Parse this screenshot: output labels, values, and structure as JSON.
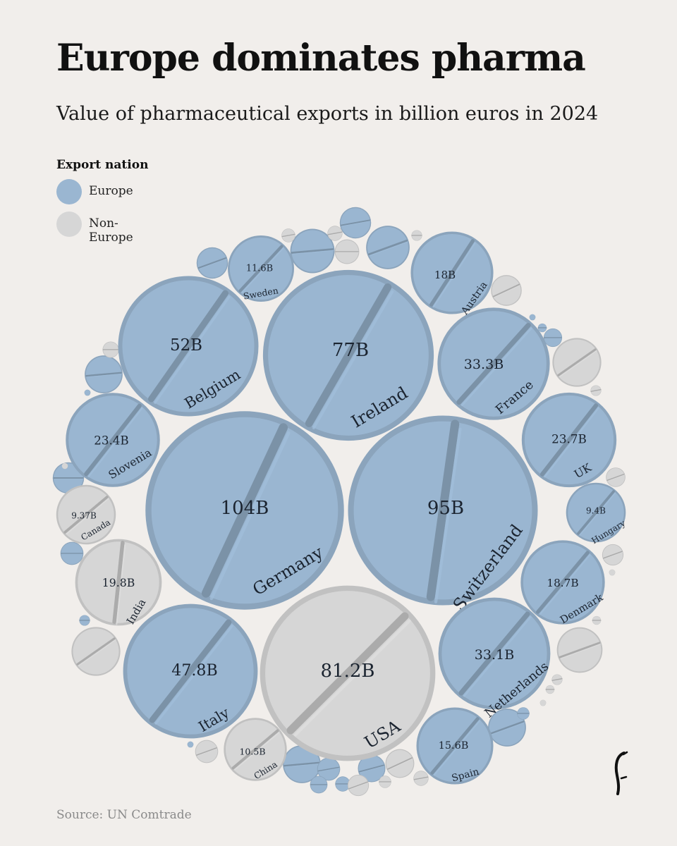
{
  "title": "Europe dominates pharma",
  "subtitle": "Value of pharmaceutical exports in billion euros in 2024",
  "legend": {
    "title": "Export nation",
    "items": [
      {
        "label": "Europe",
        "color": "#9ab6d1"
      },
      {
        "label": "Non-Europe",
        "color": "#d6d6d6"
      }
    ]
  },
  "source": "Source: UN Comtrade",
  "colors": {
    "europe": "#9ab6d1",
    "non_europe": "#d6d6d6",
    "background": "#f1eeeb"
  },
  "chart_data": {
    "type": "packed-bubble",
    "unit": "billion euros",
    "year": 2024,
    "series": [
      {
        "country": "Germany",
        "value": 104,
        "label": "104B",
        "group": "Europe"
      },
      {
        "country": "Switzerland",
        "value": 95,
        "label": "95B",
        "group": "Europe"
      },
      {
        "country": "USA",
        "value": 81.2,
        "label": "81.2B",
        "group": "Non-Europe"
      },
      {
        "country": "Ireland",
        "value": 77,
        "label": "77B",
        "group": "Europe"
      },
      {
        "country": "Belgium",
        "value": 52,
        "label": "52B",
        "group": "Europe"
      },
      {
        "country": "Italy",
        "value": 47.8,
        "label": "47.8B",
        "group": "Europe"
      },
      {
        "country": "France",
        "value": 33.3,
        "label": "33.3B",
        "group": "Europe"
      },
      {
        "country": "Netherlands",
        "value": 33.1,
        "label": "33.1B",
        "group": "Europe"
      },
      {
        "country": "UK",
        "value": 23.7,
        "label": "23.7B",
        "group": "Europe"
      },
      {
        "country": "Slovenia",
        "value": 23.4,
        "label": "23.4B",
        "group": "Europe"
      },
      {
        "country": "India",
        "value": 19.8,
        "label": "19.8B",
        "group": "Non-Europe"
      },
      {
        "country": "Denmark",
        "value": 18.7,
        "label": "18.7B",
        "group": "Europe"
      },
      {
        "country": "Austria",
        "value": 18,
        "label": "18B",
        "group": "Europe"
      },
      {
        "country": "Spain",
        "value": 15.6,
        "label": "15.6B",
        "group": "Europe"
      },
      {
        "country": "Sweden",
        "value": 11.6,
        "label": "11.6B",
        "group": "Europe"
      },
      {
        "country": "China",
        "value": 10.5,
        "label": "10.5B",
        "group": "Non-Europe"
      },
      {
        "country": "Hungary",
        "value": 9.4,
        "label": "9.4B",
        "group": "Europe"
      },
      {
        "country": "Canada",
        "value": 9.37,
        "label": "9.37B",
        "group": "Non-Europe"
      }
    ],
    "unlabeled": [
      {
        "group": "Europe",
        "value": 2.6
      },
      {
        "group": "Europe",
        "value": 2.6
      },
      {
        "group": "Europe",
        "value": 5.2
      },
      {
        "group": "Europe",
        "value": 5.0
      },
      {
        "group": "Europe",
        "value": 3.8
      },
      {
        "group": "Europe",
        "value": 3.8
      },
      {
        "group": "Europe",
        "value": 3.8
      },
      {
        "group": "Europe",
        "value": 2.6
      },
      {
        "group": "Europe",
        "value": 2.0
      },
      {
        "group": "Europe",
        "value": 1.4
      },
      {
        "group": "Europe",
        "value": 1.4
      },
      {
        "group": "Europe",
        "value": 0.9
      },
      {
        "group": "Europe",
        "value": 0.8
      },
      {
        "group": "Europe",
        "value": 0.6
      },
      {
        "group": "Europe",
        "value": 0.4
      },
      {
        "group": "Europe",
        "value": 0.3
      },
      {
        "group": "Europe",
        "value": 0.2
      },
      {
        "group": "Europe",
        "value": 0.1
      },
      {
        "group": "Europe",
        "value": 0.1
      },
      {
        "group": "Europe",
        "value": 0.1
      },
      {
        "group": "Non-Europe",
        "value": 6.3
      },
      {
        "group": "Non-Europe",
        "value": 6.3
      },
      {
        "group": "Non-Europe",
        "value": 5.5
      },
      {
        "group": "Non-Europe",
        "value": 2.5
      },
      {
        "group": "Non-Europe",
        "value": 2.2
      },
      {
        "group": "Non-Europe",
        "value": 1.6
      },
      {
        "group": "Non-Europe",
        "value": 1.4
      },
      {
        "group": "Non-Europe",
        "value": 1.2
      },
      {
        "group": "Non-Europe",
        "value": 1.2
      },
      {
        "group": "Non-Europe",
        "value": 1.0
      },
      {
        "group": "Non-Europe",
        "value": 0.7
      },
      {
        "group": "Non-Europe",
        "value": 0.6
      },
      {
        "group": "Non-Europe",
        "value": 0.6
      },
      {
        "group": "Non-Europe",
        "value": 0.5
      },
      {
        "group": "Non-Europe",
        "value": 0.4
      },
      {
        "group": "Non-Europe",
        "value": 0.3
      },
      {
        "group": "Non-Europe",
        "value": 0.3
      },
      {
        "group": "Non-Europe",
        "value": 0.3
      },
      {
        "group": "Non-Europe",
        "value": 0.2
      },
      {
        "group": "Non-Europe",
        "value": 0.2
      },
      {
        "group": "Non-Europe",
        "value": 0.1
      },
      {
        "group": "Non-Europe",
        "value": 0.1
      },
      {
        "group": "Non-Europe",
        "value": 0.1
      }
    ]
  }
}
